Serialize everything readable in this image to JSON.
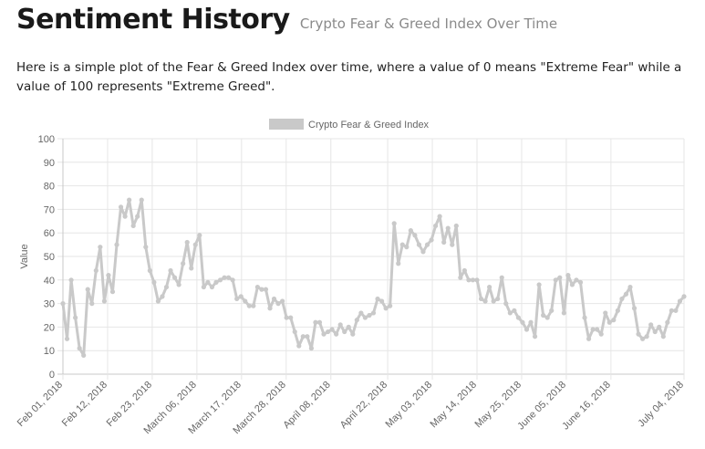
{
  "header": {
    "title": "Sentiment History",
    "subtitle": "Crypto Fear & Greed Index Over Time"
  },
  "intro": {
    "text": "Here is a simple plot of the Fear & Greed Index over time, where a value of 0 means \"Extreme Fear\" while a value of 100 represents \"Extreme Greed\"."
  },
  "chart_data": {
    "type": "line",
    "title": "",
    "xlabel": "",
    "ylabel": "Value",
    "ylim": [
      0,
      100
    ],
    "yticks": [
      0,
      10,
      20,
      30,
      40,
      50,
      60,
      70,
      80,
      90,
      100
    ],
    "grid": true,
    "legend_position": "top-center",
    "x_tick_labels": [
      "Feb 01, 2018",
      "Feb 12, 2018",
      "Feb 23, 2018",
      "March 06, 2018",
      "March 17, 2018",
      "March 28, 2018",
      "April 08, 2018",
      "April 22, 2018",
      "May 03, 2018",
      "May 14, 2018",
      "May 25, 2018",
      "June 05, 2018",
      "June 16, 2018",
      "July 04, 2018"
    ],
    "x_start": "2018-02-01",
    "x_end": "2018-07-04",
    "series": [
      {
        "name": "Crypto Fear & Greed Index",
        "color": "#c9c9c9",
        "values": [
          30,
          15,
          40,
          24,
          11,
          8,
          36,
          30,
          44,
          54,
          31,
          42,
          35,
          55,
          71,
          67,
          74,
          63,
          67,
          74,
          54,
          44,
          39,
          31,
          33,
          37,
          44,
          41,
          38,
          47,
          56,
          45,
          55,
          59,
          37,
          39,
          37,
          39,
          40,
          41,
          41,
          40,
          32,
          33,
          31,
          29,
          29,
          37,
          36,
          36,
          28,
          32,
          30,
          31,
          24,
          24,
          18,
          12,
          16,
          16,
          11,
          22,
          22,
          17,
          18,
          19,
          17,
          21,
          18,
          20,
          17,
          23,
          26,
          24,
          25,
          26,
          32,
          31,
          28,
          29,
          64,
          47,
          55,
          54,
          61,
          59,
          55,
          52,
          55,
          57,
          63,
          67,
          56,
          62,
          55,
          63,
          41,
          44,
          40,
          40,
          40,
          32,
          31,
          37,
          31,
          32,
          41,
          30,
          26,
          27,
          24,
          22,
          19,
          22,
          16,
          38,
          25,
          24,
          27,
          40,
          41,
          26,
          42,
          38,
          40,
          39,
          24,
          15,
          19,
          19,
          17,
          26,
          22,
          23,
          27,
          32,
          34,
          37,
          28,
          17,
          15,
          16,
          21,
          18,
          20,
          16,
          22,
          27,
          27,
          31,
          33
        ]
      }
    ]
  }
}
